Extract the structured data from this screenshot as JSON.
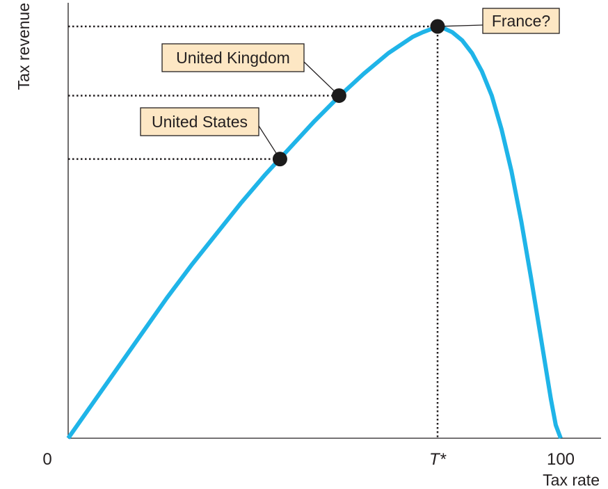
{
  "chart_data": {
    "type": "line",
    "title": "",
    "xlabel": "Tax rate",
    "ylabel": "Tax revenue",
    "xlim": [
      0,
      100
    ],
    "ylim": [
      0,
      100
    ],
    "grid": false,
    "x_ticks": [
      {
        "value": 0,
        "label": "0"
      },
      {
        "value": 75,
        "label": "T*",
        "italic": true
      },
      {
        "value": 100,
        "label": "100"
      }
    ],
    "series": [
      {
        "color": "#1fb4e8",
        "x": [
          0,
          5,
          10,
          15,
          20,
          25,
          30,
          35,
          40,
          45,
          50,
          55,
          60,
          65,
          70,
          72,
          74,
          75,
          76,
          78,
          80,
          82,
          84,
          86,
          88,
          90,
          92,
          94,
          96,
          98,
          99,
          100
        ],
        "y": [
          0,
          8.5,
          17,
          25.5,
          34,
          42,
          49.5,
          57,
          64,
          70.5,
          77,
          83,
          88.5,
          93.5,
          97.5,
          98.6,
          99.5,
          100,
          99.7,
          98.6,
          96.6,
          93.5,
          89.1,
          83.2,
          75,
          64.9,
          52.6,
          38.8,
          24.2,
          9.6,
          3.2,
          0
        ]
      }
    ],
    "points": [
      {
        "label": "United States",
        "x": 43,
        "y": 67.8
      },
      {
        "label": "United Kingdom",
        "x": 55,
        "y": 83.2
      },
      {
        "label": "France?",
        "x": 75,
        "y": 100
      }
    ],
    "reference_lines": {
      "horizontal_to_y_axis_from_points": true,
      "vertical_to_x_axis_at": 75,
      "style": "dotted"
    },
    "colors": {
      "curve": "#1fb4e8",
      "label_fill": "#fde7c4",
      "axis": "#231f20"
    }
  }
}
